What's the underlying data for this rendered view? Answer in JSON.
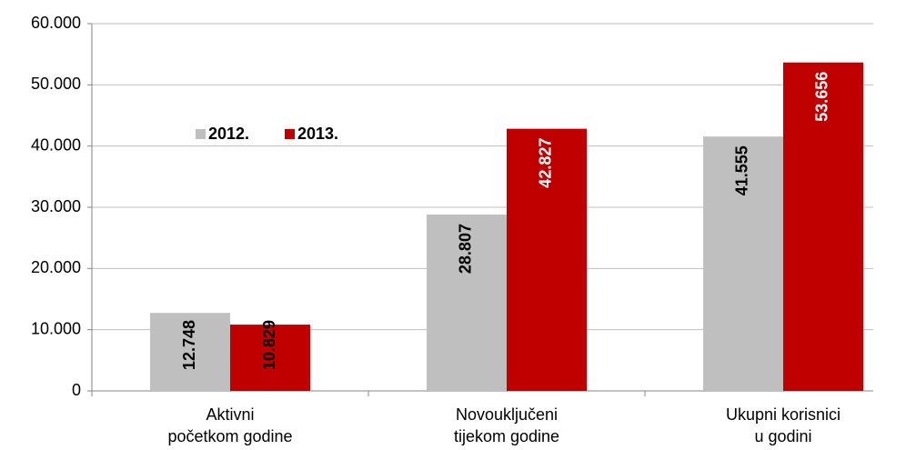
{
  "chart_data": {
    "type": "bar",
    "categories": [
      [
        "Aktivni",
        "početkom godine"
      ],
      [
        "Novouključeni",
        "tijekom godine"
      ],
      [
        "Ukupni korisnici",
        "u godini"
      ]
    ],
    "series": [
      {
        "name": "2012.",
        "color": "#bfbfbf",
        "label_color": "#000000",
        "values": [
          12748,
          28807,
          41555
        ],
        "value_labels": [
          "12.748",
          "28.807",
          "41.555"
        ]
      },
      {
        "name": "2013.",
        "color": "#c00000",
        "label_color": "#ffffff",
        "values": [
          10829,
          42827,
          53656
        ],
        "value_labels": [
          "10.829",
          "42.827",
          "53.656"
        ]
      }
    ],
    "ylim": [
      0,
      60000
    ],
    "yticks": [
      0,
      {
        "value": 10000,
        "label": "10.000"
      },
      {
        "value": 20000,
        "label": "20.000"
      },
      {
        "value": 30000,
        "label": "30.000"
      },
      {
        "value": 40000,
        "label": "40.000"
      },
      {
        "value": 50000,
        "label": "50.000"
      },
      {
        "value": 60000,
        "label": "60.000"
      }
    ],
    "grid": true,
    "legend": "upper-left"
  }
}
